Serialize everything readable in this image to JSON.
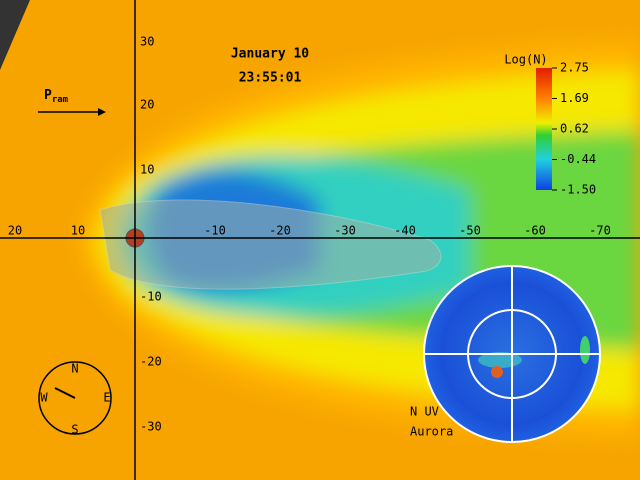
{
  "header": {
    "date": "January 10",
    "time": "23:55:01"
  },
  "pressure_label": {
    "main": "P",
    "sub": "ram"
  },
  "colorbar": {
    "title": "Log(N)",
    "ticks": [
      "2.75",
      "1.69",
      "0.62",
      "-0.44",
      "-1.50"
    ]
  },
  "x_axis": {
    "labels": [
      "20",
      "10",
      "-10",
      "-20",
      "-30",
      "-40",
      "-50",
      "-60",
      "-70"
    ]
  },
  "y_axis": {
    "labels": [
      "30",
      "20",
      "10",
      "-10",
      "-20",
      "-30"
    ]
  },
  "compass": {
    "north": "N",
    "east": "E",
    "south": "S",
    "west": "W"
  },
  "aurora": {
    "lines": [
      "N UV",
      "Aurora"
    ]
  }
}
